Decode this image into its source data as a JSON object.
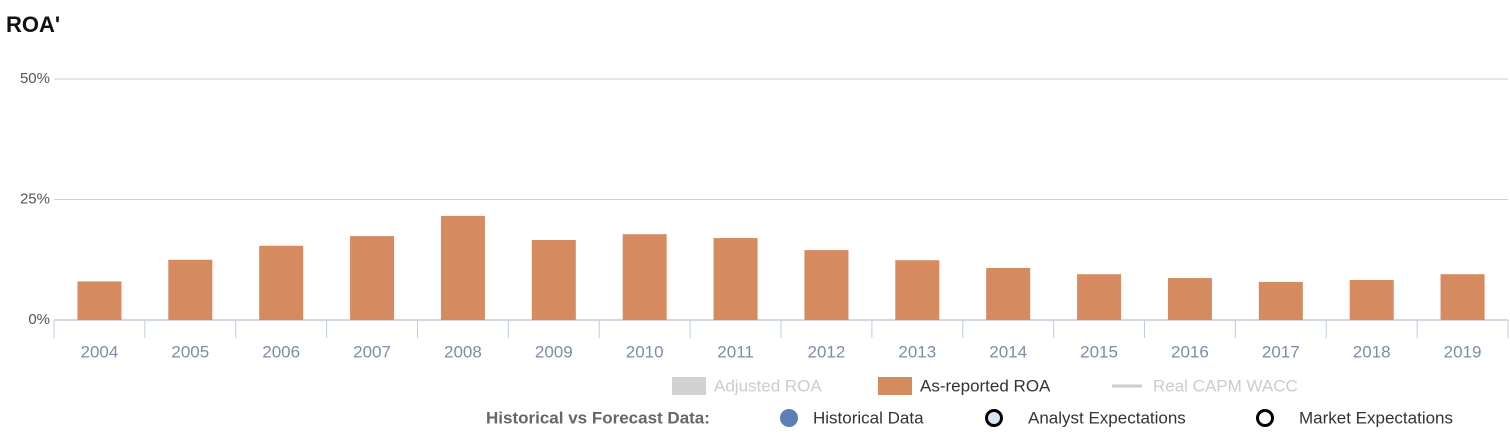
{
  "chart_data": {
    "type": "bar",
    "title": "ROA'",
    "categories": [
      "2004",
      "2005",
      "2006",
      "2007",
      "2008",
      "2009",
      "2010",
      "2011",
      "2012",
      "2013",
      "2014",
      "2015",
      "2016",
      "2017",
      "2018",
      "2019"
    ],
    "series": [
      {
        "name": "As-reported ROA",
        "color": "#d58a60",
        "values": [
          8,
          12.5,
          15.4,
          17.4,
          21.6,
          16.6,
          17.8,
          17,
          14.5,
          12.4,
          10.8,
          9.5,
          8.7,
          7.9,
          8.3,
          9.5
        ]
      }
    ],
    "legend": [
      {
        "name": "Adjusted ROA",
        "color": "#cccccc",
        "hidden": true,
        "symbol": "rect"
      },
      {
        "name": "As-reported ROA",
        "color": "#d58a60",
        "hidden": false,
        "symbol": "rect"
      },
      {
        "name": "Real CAPM WACC",
        "color": "#cccccc",
        "hidden": true,
        "symbol": "line"
      }
    ],
    "data_legend": {
      "title": "Historical vs Forecast Data:",
      "items": [
        {
          "name": "Historical Data",
          "color": "#5b7fb5"
        },
        {
          "name": "Analyst Expectations",
          "color": "#000000"
        },
        {
          "name": "Market Expectations",
          "color": "#000000"
        }
      ]
    },
    "ylim": [
      0,
      50
    ],
    "yticks": [
      {
        "value": 0,
        "label": "0%"
      },
      {
        "value": 25,
        "label": "25%"
      },
      {
        "value": 50,
        "label": "50%"
      }
    ],
    "grid": true
  }
}
